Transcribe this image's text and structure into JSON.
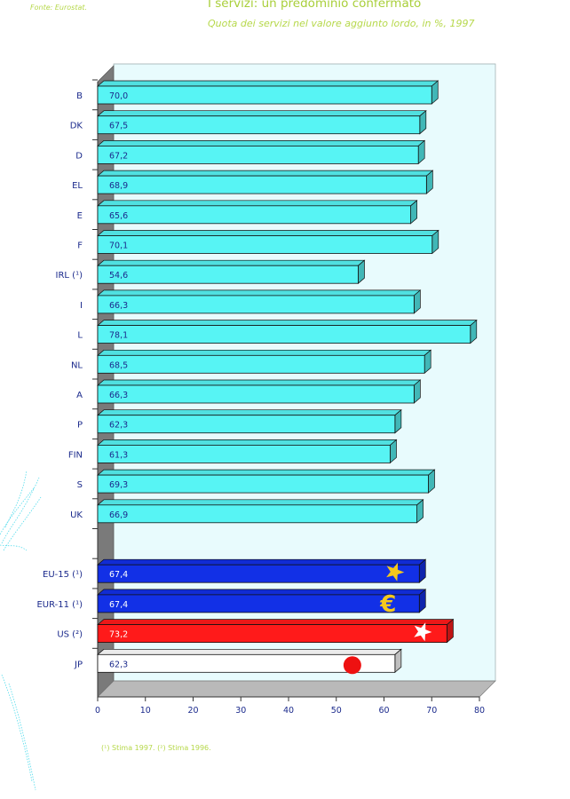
{
  "source": "Fonte: Eurostat.",
  "title": "I servizi: un predominio confermato",
  "subtitle": "Quota dei servizi nel valore aggiunto lordo, in %, 1997",
  "footnote": "(¹) Stima 1997.   (²) Stima 1996.",
  "chart_data": {
    "type": "bar",
    "orientation": "horizontal",
    "style": "3d",
    "categories": [
      "B",
      "DK",
      "D",
      "EL",
      "E",
      "F",
      "IRL (¹)",
      "I",
      "L",
      "NL",
      "A",
      "P",
      "FIN",
      "S",
      "UK",
      "",
      "EU-15 (¹)",
      "EUR-11 (¹)",
      "US (²)",
      "JP"
    ],
    "values": [
      70.0,
      67.5,
      67.2,
      68.9,
      65.6,
      70.1,
      54.6,
      66.3,
      78.1,
      68.5,
      66.3,
      62.3,
      61.3,
      69.3,
      66.9,
      null,
      67.4,
      67.4,
      73.2,
      62.3
    ],
    "value_labels": [
      "70,0",
      "67,5",
      "67,2",
      "68,9",
      "65,6",
      "70,1",
      "54,6",
      "66,3",
      "78,1",
      "68,5",
      "66,3",
      "62,3",
      "61,3",
      "69,3",
      "66,9",
      "",
      "67,4",
      "67,4",
      "73,2",
      "62,3"
    ],
    "bar_colors": [
      "#57f4f4",
      "#57f4f4",
      "#57f4f4",
      "#57f4f4",
      "#57f4f4",
      "#57f4f4",
      "#57f4f4",
      "#57f4f4",
      "#57f4f4",
      "#57f4f4",
      "#57f4f4",
      "#57f4f4",
      "#57f4f4",
      "#57f4f4",
      "#57f4f4",
      "",
      "#1230e6",
      "#1230e6",
      "#ff1a1a",
      "#ffffff"
    ],
    "label_colors": [
      "#1b2a8c",
      "#1b2a8c",
      "#1b2a8c",
      "#1b2a8c",
      "#1b2a8c",
      "#1b2a8c",
      "#1b2a8c",
      "#1b2a8c",
      "#1b2a8c",
      "#1b2a8c",
      "#1b2a8c",
      "#1b2a8c",
      "#1b2a8c",
      "#1b2a8c",
      "#1b2a8c",
      "",
      "#ffffff",
      "#ffffff",
      "#ffffff",
      "#1b2a8c"
    ],
    "markers": {
      "EU-15 (¹)": "star",
      "EUR-11 (¹)": "euro-sign",
      "US (²)": "star",
      "JP": "red-disc"
    },
    "marker_glyphs": {
      "euro-sign": "€"
    },
    "xlim": [
      0,
      80
    ],
    "xticks": [
      0,
      10,
      20,
      30,
      40,
      50,
      60,
      70,
      80
    ],
    "tick_color": "#1b2a8c",
    "plot_background": "#e8fbfd",
    "wall_color": "#7a7a7a",
    "floor_color": "#b9b9b9"
  }
}
